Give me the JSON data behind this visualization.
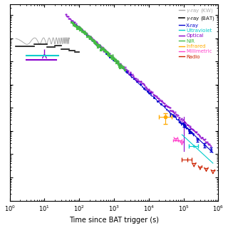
{
  "xlabel": "Time since BAT trigger (s)",
  "xlim": [
    1,
    1000000
  ],
  "ylim": [
    1e-14,
    3e-06
  ],
  "colors": {
    "gamma_kw": "#aaaaaa",
    "gamma_bat": "#111111",
    "xray": "#0000cc",
    "uv": "#00cccc",
    "optical": "#8800cc",
    "nir": "#44bb44",
    "infrared": "#ffaa00",
    "millimetric": "#ff44cc",
    "radio": "#cc2200"
  },
  "legend_labels": [
    "γ-ray (KW)",
    "γ-ray (BAT)",
    "X-ray",
    "Ultraviolet",
    "Optical",
    "NIR",
    "Infrared",
    "Millimetric",
    "Radio"
  ]
}
